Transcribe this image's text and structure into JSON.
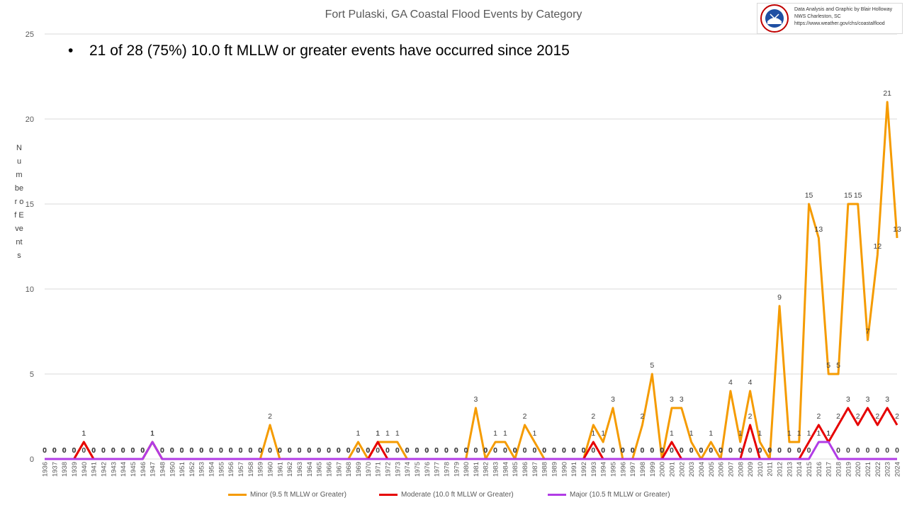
{
  "title": "Fort Pulaski, GA Coastal Flood Events by Category",
  "annotation": "21 of 28 (75%) 10.0 ft MLLW or greater events have occurred since 2015",
  "credit": {
    "line1": "Data Analysis and Graphic by Blair Holloway",
    "line2": "NWS Charleston, SC",
    "line3": "https://www.weather.gov/chs/coastalflood",
    "logo": "noaa-nws-logo"
  },
  "colors": {
    "minor": "#F59B00",
    "moderate": "#E60000",
    "major": "#B13CE6",
    "grid": "#d9d9d9",
    "axis_text": "#595959"
  },
  "chart_data": {
    "type": "line",
    "title": "Fort Pulaski, GA Coastal Flood Events by Category",
    "xlabel": "",
    "ylabel": "Number of Events",
    "ylim": [
      0,
      25
    ],
    "yticks": [
      0,
      5,
      10,
      15,
      20,
      25
    ],
    "grid": true,
    "legend_placement": "bottom",
    "categories": [
      "1936",
      "1937",
      "1938",
      "1939",
      "1940",
      "1941",
      "1942",
      "1943",
      "1944",
      "1945",
      "1946",
      "1947",
      "1948",
      "1950",
      "1951",
      "1952",
      "1953",
      "1954",
      "1955",
      "1956",
      "1957",
      "1958",
      "1959",
      "1960",
      "1961",
      "1962",
      "1963",
      "1964",
      "1965",
      "1966",
      "1967",
      "1968",
      "1969",
      "1970",
      "1971",
      "1972",
      "1973",
      "1974",
      "1975",
      "1976",
      "1977",
      "1978",
      "1979",
      "1980",
      "1981",
      "1982",
      "1983",
      "1984",
      "1985",
      "1986",
      "1987",
      "1988",
      "1989",
      "1990",
      "1991",
      "1992",
      "1993",
      "1994",
      "1995",
      "1996",
      "1997",
      "1998",
      "1999",
      "2000",
      "2001",
      "2002",
      "2003",
      "2004",
      "2005",
      "2006",
      "2007",
      "2008",
      "2009",
      "2010",
      "2011",
      "2012",
      "2013",
      "2014",
      "2015",
      "2016",
      "2017",
      "2018",
      "2019",
      "2020",
      "2021",
      "2022",
      "2023",
      "2024"
    ],
    "series": [
      {
        "name": "Minor (9.5 ft MLLW or Greater)",
        "color": "#F59B00",
        "values": [
          0,
          0,
          0,
          0,
          1,
          0,
          0,
          0,
          0,
          0,
          0,
          1,
          0,
          0,
          0,
          0,
          0,
          0,
          0,
          0,
          0,
          0,
          0,
          2,
          0,
          0,
          0,
          0,
          0,
          0,
          0,
          0,
          1,
          0,
          1,
          1,
          1,
          0,
          0,
          0,
          0,
          0,
          0,
          0,
          3,
          0,
          1,
          1,
          0,
          2,
          1,
          0,
          0,
          0,
          0,
          0,
          2,
          1,
          3,
          0,
          0,
          2,
          5,
          0,
          3,
          3,
          1,
          0,
          1,
          0,
          4,
          1,
          4,
          1,
          0,
          9,
          1,
          1,
          15,
          13,
          5,
          5,
          15,
          15,
          7,
          12,
          21,
          13
        ]
      },
      {
        "name": "Moderate (10.0 ft MLLW or Greater)",
        "color": "#E60000",
        "values": [
          0,
          0,
          0,
          0,
          1,
          0,
          0,
          0,
          0,
          0,
          0,
          1,
          0,
          0,
          0,
          0,
          0,
          0,
          0,
          0,
          0,
          0,
          0,
          0,
          0,
          0,
          0,
          0,
          0,
          0,
          0,
          0,
          0,
          0,
          1,
          0,
          0,
          0,
          0,
          0,
          0,
          0,
          0,
          0,
          0,
          0,
          0,
          0,
          0,
          0,
          0,
          0,
          0,
          0,
          0,
          0,
          1,
          0,
          0,
          0,
          0,
          0,
          0,
          0,
          1,
          0,
          0,
          0,
          0,
          0,
          0,
          0,
          2,
          0,
          0,
          0,
          0,
          0,
          1,
          2,
          1,
          2,
          3,
          2,
          3,
          2,
          3,
          2
        ]
      },
      {
        "name": "Major (10.5 ft MLLW or Greater)",
        "color": "#B13CE6",
        "values": [
          0,
          0,
          0,
          0,
          0,
          0,
          0,
          0,
          0,
          0,
          0,
          1,
          0,
          0,
          0,
          0,
          0,
          0,
          0,
          0,
          0,
          0,
          0,
          0,
          0,
          0,
          0,
          0,
          0,
          0,
          0,
          0,
          0,
          0,
          0,
          0,
          0,
          0,
          0,
          0,
          0,
          0,
          0,
          0,
          0,
          0,
          0,
          0,
          0,
          0,
          0,
          0,
          0,
          0,
          0,
          0,
          0,
          0,
          0,
          0,
          0,
          0,
          0,
          0,
          0,
          0,
          0,
          0,
          0,
          0,
          0,
          0,
          0,
          0,
          0,
          0,
          0,
          0,
          0,
          1,
          1,
          0,
          0,
          0,
          0,
          0,
          0,
          0
        ]
      }
    ]
  }
}
